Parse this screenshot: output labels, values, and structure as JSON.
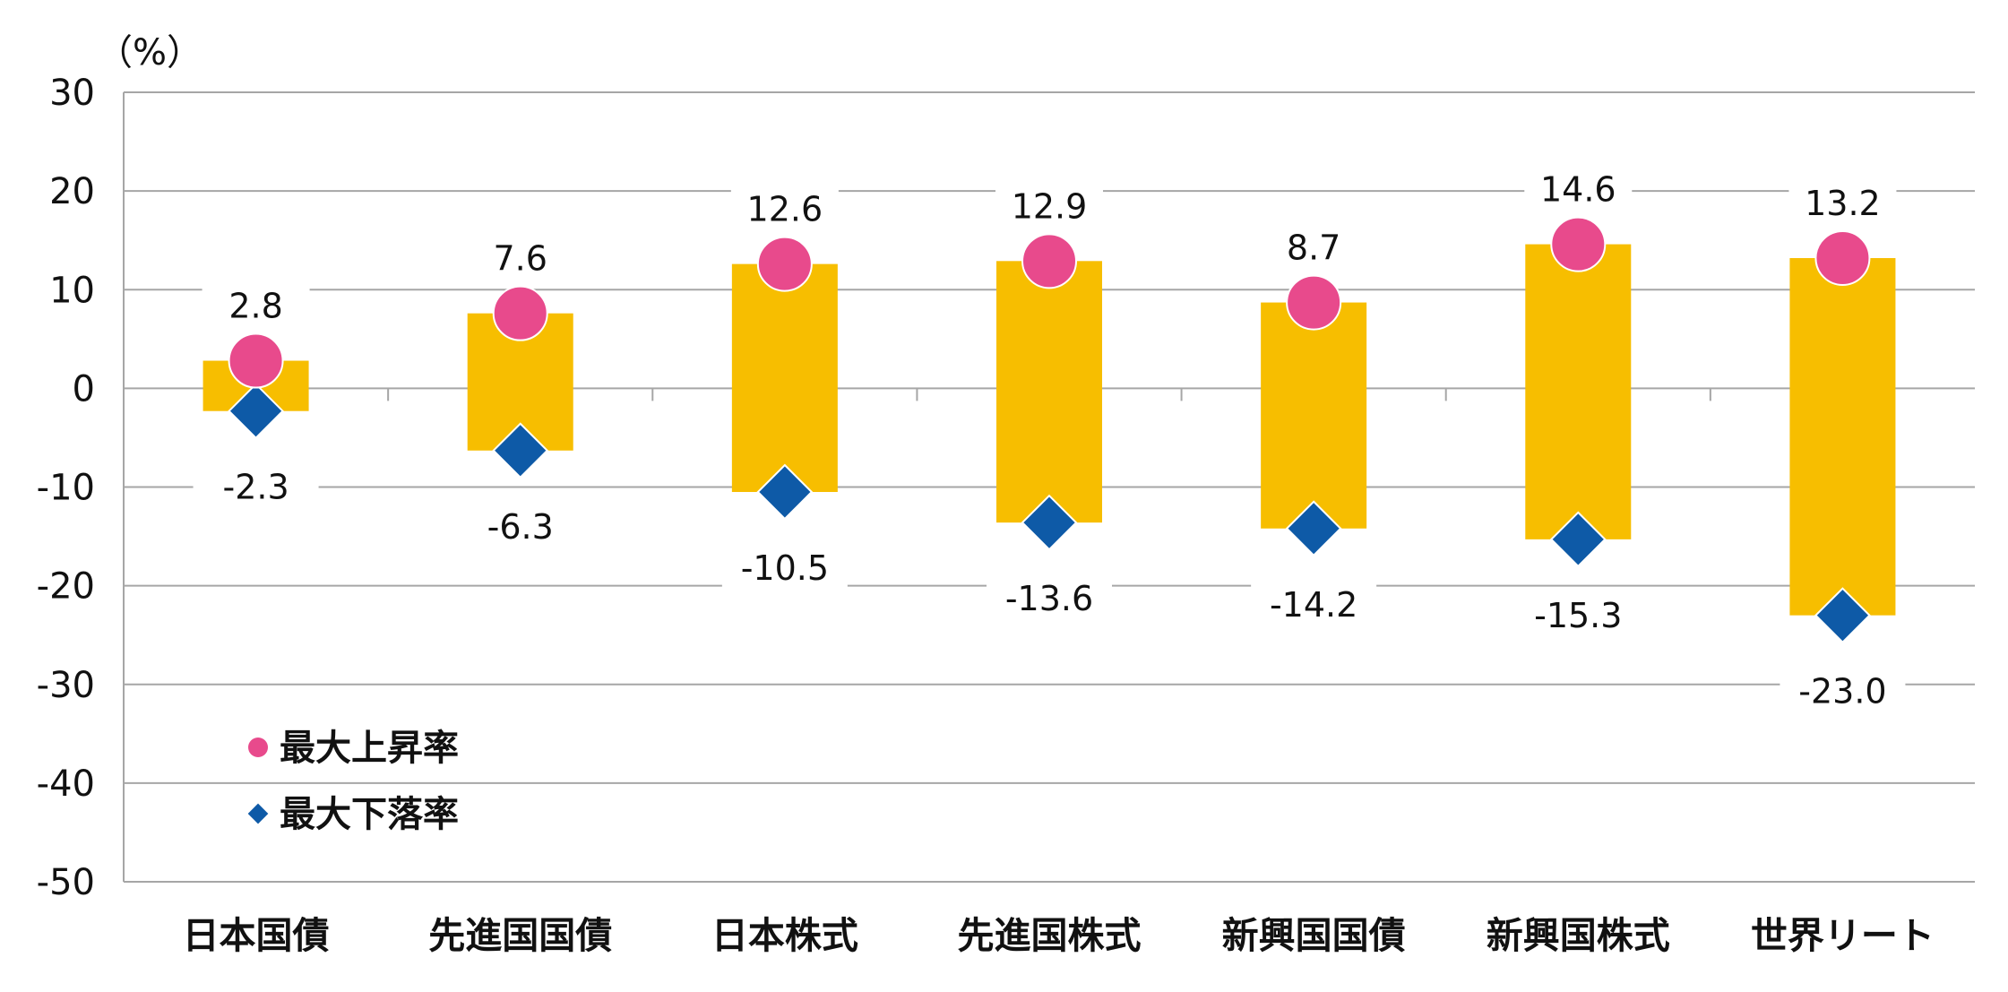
{
  "chart_data": {
    "type": "bar",
    "unit_label": "（%）",
    "categories": [
      "日本国債",
      "先進国国債",
      "日本株式",
      "先進国株式",
      "新興国国債",
      "新興国株式",
      "世界リート"
    ],
    "series": [
      {
        "name": "最大上昇率",
        "values": [
          2.8,
          7.6,
          12.6,
          12.9,
          8.7,
          14.6,
          13.2
        ]
      },
      {
        "name": "最大下落率",
        "values": [
          -2.3,
          -6.3,
          -10.5,
          -13.6,
          -14.2,
          -15.3,
          -23.0
        ]
      }
    ],
    "value_labels_max": [
      "2.8",
      "7.6",
      "12.6",
      "12.9",
      "8.7",
      "14.6",
      "13.2"
    ],
    "value_labels_min": [
      "-2.3",
      "-6.3",
      "-10.5",
      "-13.6",
      "-14.2",
      "-15.3",
      "-23.0"
    ],
    "ylim": [
      -50,
      30
    ],
    "yticks": [
      "30",
      "20",
      "10",
      "0",
      "-10",
      "-20",
      "-30",
      "-40",
      "-50"
    ],
    "grid": true,
    "legend_position": "bottom-left",
    "colors": {
      "range_bar": "#F7BE00",
      "max_marker": "#E84A8C",
      "min_marker": "#0E5AA7",
      "grid": "#A6A6A6"
    }
  }
}
